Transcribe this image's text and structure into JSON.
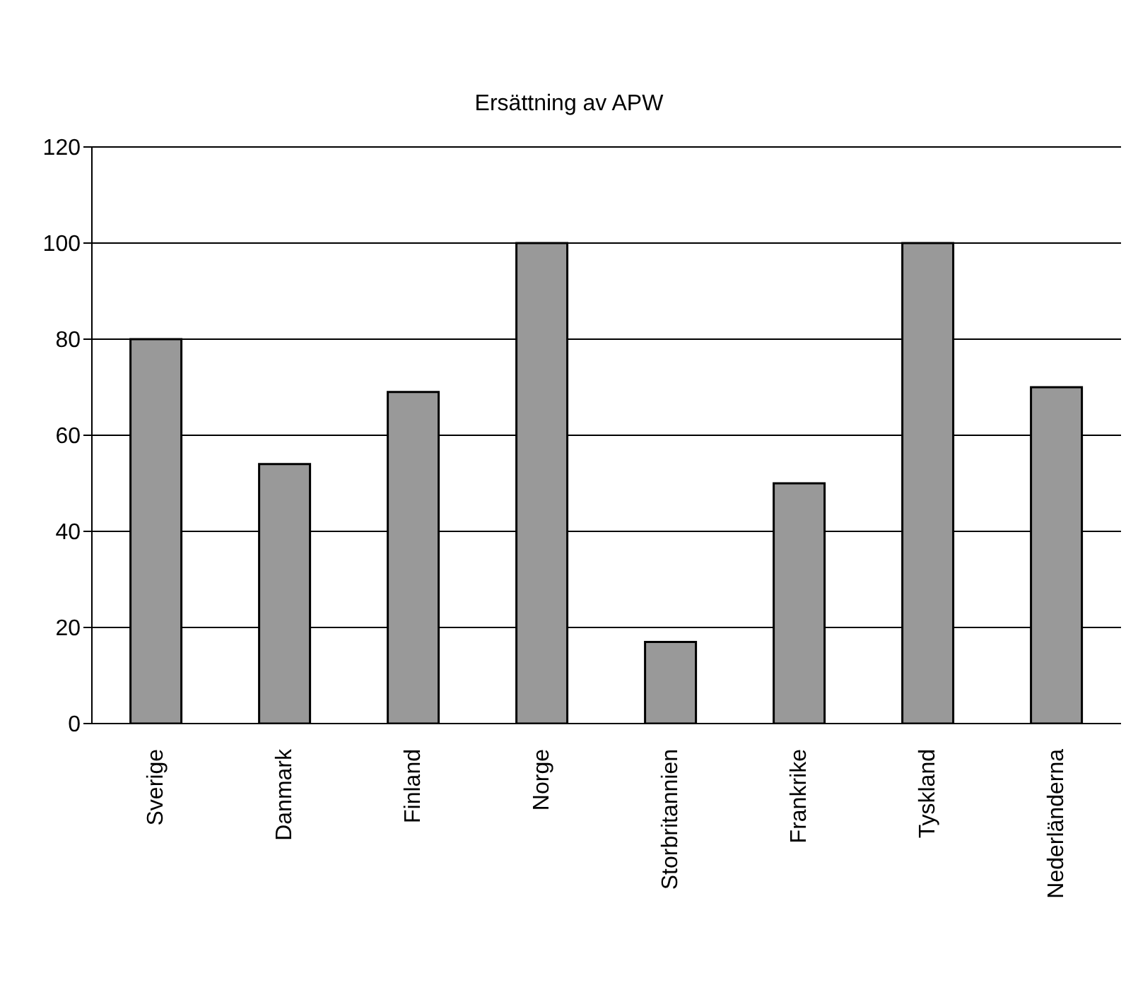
{
  "chart_data": {
    "type": "bar",
    "title": "Ersättning av APW",
    "categories": [
      "Sverige",
      "Danmark",
      "Finland",
      "Norge",
      "Storbritannien",
      "Frankrike",
      "Tyskland",
      "Nederländerna"
    ],
    "values": [
      80,
      54,
      69,
      100,
      17,
      50,
      100,
      70
    ],
    "color": "#999999",
    "ylim": [
      0,
      120
    ],
    "yticks": [
      0,
      20,
      40,
      60,
      80,
      100,
      120
    ],
    "grid": "y"
  }
}
